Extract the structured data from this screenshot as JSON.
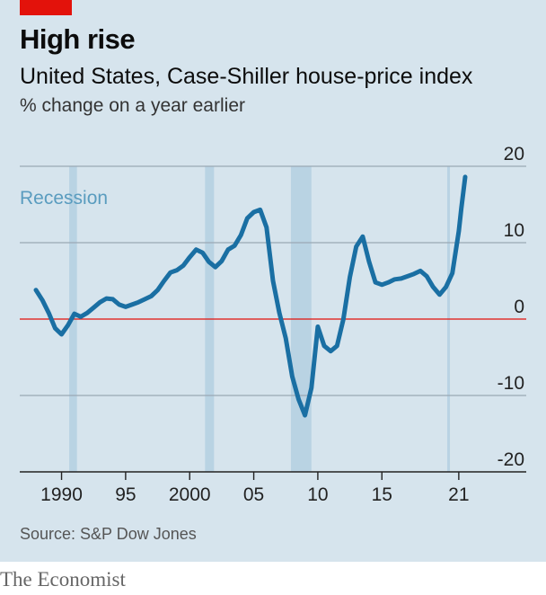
{
  "header": {
    "title": "High rise",
    "subtitle": "United States, Case-Shiller house-price index",
    "unit": "% change on a year earlier"
  },
  "footer": {
    "source": "Source: S&P Dow Jones",
    "publisher": "The Economist"
  },
  "colors": {
    "background": "#d6e4ed",
    "line": "#1a6fa3",
    "recession": "#b9d3e3",
    "zero_line": "#e3120b",
    "brand": "#e3120b"
  },
  "chart_data": {
    "type": "line",
    "title": "High rise",
    "subtitle": "United States, Case-Shiller house-price index",
    "ylabel": "% change on a year earlier",
    "ylim": [
      -20,
      20
    ],
    "xlim": [
      1987.5,
      2022.5
    ],
    "y_ticks": [
      20,
      10,
      0,
      -10,
      -20
    ],
    "y_tick_labels": [
      "20",
      "10",
      "0",
      "-10",
      "-20"
    ],
    "x_ticks": [
      1990,
      1995,
      2000,
      2005,
      2010,
      2015,
      2021
    ],
    "x_tick_labels": [
      "1990",
      "95",
      "2000",
      "05",
      "10",
      "15",
      "21"
    ],
    "grid": "horizontal",
    "y_axis_position": "right",
    "recession_label": "Recession",
    "recessions": [
      [
        1990.6,
        1991.2
      ],
      [
        2001.2,
        2001.9
      ],
      [
        2007.9,
        2009.5
      ],
      [
        2020.1,
        2020.3
      ]
    ],
    "series": [
      {
        "x": [
          1988.0,
          1988.5,
          1989.0,
          1989.5,
          1990.0,
          1990.5,
          1991.0,
          1991.5,
          1992.0,
          1992.5,
          1993.0,
          1993.5,
          1994.0,
          1994.5,
          1995.0,
          1995.5,
          1996.0,
          1996.5,
          1997.0,
          1997.5,
          1998.0,
          1998.5,
          1999.0,
          1999.5,
          2000.0,
          2000.5,
          2001.0,
          2001.5,
          2002.0,
          2002.5,
          2003.0,
          2003.5,
          2004.0,
          2004.5,
          2005.0,
          2005.5,
          2006.0,
          2006.5,
          2007.0,
          2007.5,
          2008.0,
          2008.5,
          2009.0,
          2009.5,
          2010.0,
          2010.5,
          2011.0,
          2011.5,
          2012.0,
          2012.5,
          2013.0,
          2013.5,
          2014.0,
          2014.5,
          2015.0,
          2015.5,
          2016.0,
          2016.5,
          2017.0,
          2017.5,
          2018.0,
          2018.5,
          2019.0,
          2019.5,
          2020.0,
          2020.5,
          2021.0,
          2021.2,
          2021.5
        ],
        "values": [
          3.8,
          2.5,
          0.8,
          -1.2,
          -2.0,
          -0.8,
          0.7,
          0.3,
          0.8,
          1.5,
          2.2,
          2.7,
          2.6,
          1.9,
          1.6,
          1.9,
          2.2,
          2.6,
          3.0,
          3.8,
          5.0,
          6.1,
          6.4,
          7.0,
          8.1,
          9.1,
          8.7,
          7.5,
          6.8,
          7.6,
          9.1,
          9.6,
          11.0,
          13.2,
          14.0,
          14.3,
          12.0,
          5.0,
          0.8,
          -2.5,
          -7.5,
          -10.5,
          -12.6,
          -9.0,
          -1.0,
          -3.5,
          -4.2,
          -3.5,
          0.0,
          5.5,
          9.5,
          10.8,
          7.5,
          4.8,
          4.5,
          4.8,
          5.2,
          5.3,
          5.6,
          5.9,
          6.3,
          5.6,
          4.2,
          3.2,
          4.2,
          6.0,
          11.5,
          14.5,
          18.6
        ]
      }
    ]
  }
}
